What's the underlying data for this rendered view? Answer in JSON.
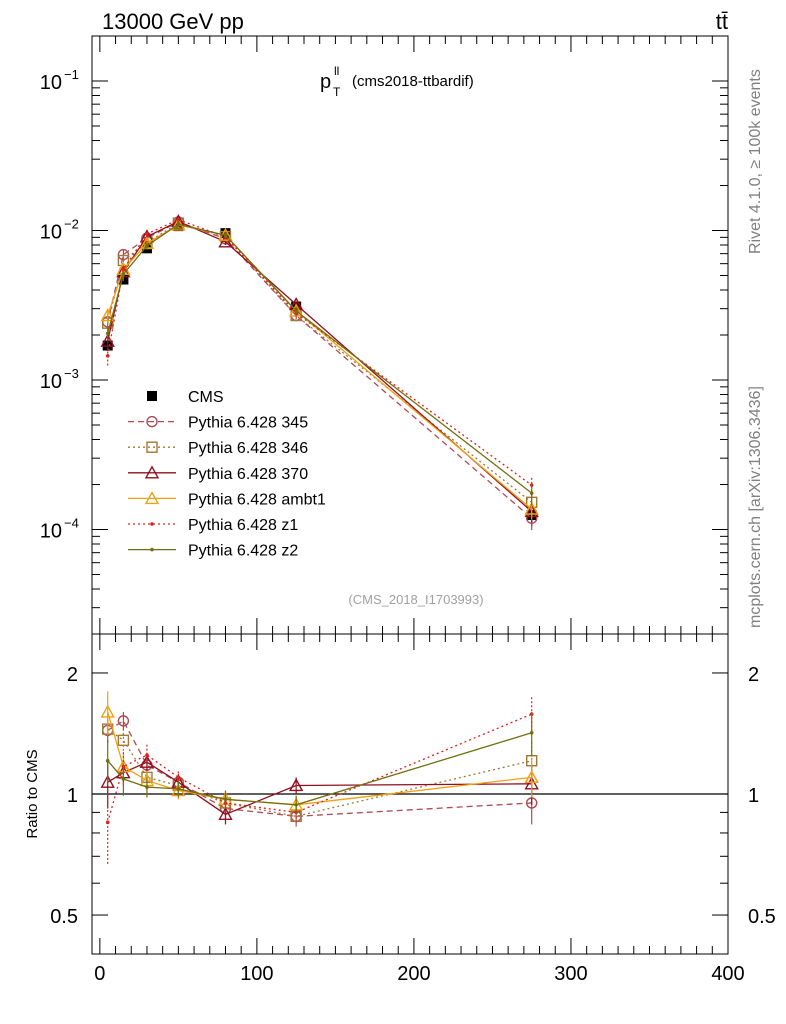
{
  "header": {
    "energy_label": "13000 GeV pp",
    "process_label": "tt̄",
    "side_label_top": "Rivet 4.1.0, ≥ 100k events",
    "side_label_bottom": "mcplots.cern.ch [arXiv:1306.3436]",
    "plot_title": "(cms2018-ttbardif)",
    "plot_var": "p",
    "plot_var_sup": "ll",
    "plot_var_sub": "T",
    "analysis_id": "(CMS_2018_I1703993)"
  },
  "chart_data": [
    {
      "type": "line",
      "panel": "main",
      "yscale": "log",
      "xlim": [
        -5,
        400
      ],
      "ylim": [
        2e-05,
        0.2
      ],
      "ylabel": "",
      "xlabel": "",
      "ytick_labels": [
        {
          "value": 0.1,
          "base": "10",
          "exp": "−1"
        },
        {
          "value": 0.01,
          "base": "10",
          "exp": "−2"
        },
        {
          "value": 0.001,
          "base": "10",
          "exp": "−3"
        },
        {
          "value": 0.0001,
          "base": "10",
          "exp": "−4"
        }
      ],
      "x": [
        5,
        15,
        30,
        50,
        80,
        125,
        275
      ],
      "series": [
        {
          "name": "CMS",
          "color": "#000000",
          "marker": "filled-square",
          "line": "none",
          "values": [
            0.0017,
            0.0047,
            0.0076,
            0.0107,
            0.0096,
            0.0031,
            0.000125
          ],
          "errors": [
            0.00013,
            0.0003,
            0.0004,
            0.0005,
            0.0005,
            0.0002,
            2e-05
          ]
        },
        {
          "name": "Pythia 6.428 345",
          "color": "#b04a55",
          "marker": "open-circle",
          "line": "dashed",
          "values": [
            0.00245,
            0.0069,
            0.0089,
            0.0114,
            0.0088,
            0.0027,
            0.000119
          ],
          "errors": [
            0.0002,
            0.0005,
            0.0005,
            0.0005,
            0.0004,
            0.00015,
            2e-05
          ]
        },
        {
          "name": "Pythia 6.428 346",
          "color": "#a07838",
          "marker": "open-square",
          "line": "dotted",
          "values": [
            0.0024,
            0.0063,
            0.0083,
            0.0112,
            0.0091,
            0.0027,
            0.000152
          ],
          "errors": [
            0.0002,
            0.0005,
            0.0005,
            0.0005,
            0.0004,
            0.00015,
            2e-05
          ]
        },
        {
          "name": "Pythia 6.428 370",
          "color": "#901020",
          "marker": "open-triangle",
          "line": "solid",
          "values": [
            0.00182,
            0.0053,
            0.0091,
            0.0115,
            0.0084,
            0.0032,
            0.000132
          ],
          "errors": [
            0.00015,
            0.0004,
            0.0005,
            0.0005,
            0.0004,
            0.00015,
            2e-05
          ]
        },
        {
          "name": "Pythia 6.428 ambt1",
          "color": "#f0a010",
          "marker": "open-triangle",
          "line": "solid",
          "values": [
            0.0027,
            0.0055,
            0.0082,
            0.0109,
            0.0093,
            0.0029,
            0.000137
          ],
          "errors": [
            0.0003,
            0.0005,
            0.0005,
            0.0005,
            0.0004,
            0.00015,
            2e-05
          ]
        },
        {
          "name": "Pythia 6.428 z1",
          "color": "#e02020",
          "marker": "dot",
          "line": "dotted",
          "values": [
            0.00145,
            0.0055,
            0.0095,
            0.0118,
            0.0091,
            0.0028,
            0.000198
          ],
          "errors": [
            0.0002,
            0.0005,
            0.0005,
            0.0005,
            0.0004,
            0.00015,
            3e-05
          ]
        },
        {
          "name": "Pythia 6.428 z2",
          "color": "#707010",
          "marker": "dot",
          "line": "solid",
          "values": [
            0.00205,
            0.0051,
            0.0079,
            0.011,
            0.0093,
            0.0029,
            0.000175
          ],
          "errors": [
            0.0002,
            0.0005,
            0.0005,
            0.0005,
            0.0004,
            0.00015,
            3e-05
          ]
        }
      ]
    },
    {
      "type": "line",
      "panel": "ratio",
      "yscale": "log",
      "xlim": [
        -5,
        400
      ],
      "ylim": [
        0.4,
        2.5
      ],
      "ylabel": "Ratio to CMS",
      "xlabel": "",
      "xtick_labels": [
        "0",
        "100",
        "200",
        "300",
        "400"
      ],
      "xticks": [
        0,
        100,
        200,
        300,
        400
      ],
      "ytick_labels": [
        "0.5",
        "1",
        "2"
      ],
      "yticks": [
        0.5,
        1,
        2
      ],
      "x": [
        5,
        15,
        30,
        50,
        80,
        125,
        275
      ],
      "series": [
        {
          "name": "Pythia 6.428 345",
          "color": "#b04a55",
          "marker": "open-circle",
          "line": "dashed",
          "values": [
            1.44,
            1.52,
            1.18,
            1.07,
            0.92,
            0.88,
            0.95
          ],
          "errors": [
            0.1,
            0.08,
            0.06,
            0.05,
            0.05,
            0.05,
            0.11
          ]
        },
        {
          "name": "Pythia 6.428 346",
          "color": "#a07838",
          "marker": "open-square",
          "line": "dotted",
          "values": [
            1.45,
            1.36,
            1.1,
            1.05,
            0.95,
            0.88,
            1.21
          ],
          "errors": [
            0.1,
            0.08,
            0.06,
            0.05,
            0.05,
            0.05,
            0.15
          ]
        },
        {
          "name": "Pythia 6.428 370",
          "color": "#901020",
          "marker": "open-triangle",
          "line": "solid",
          "values": [
            1.07,
            1.13,
            1.2,
            1.07,
            0.89,
            1.05,
            1.06
          ],
          "errors": [
            0.15,
            0.08,
            0.06,
            0.05,
            0.05,
            0.05,
            0.12
          ]
        },
        {
          "name": "Pythia 6.428 ambt1",
          "color": "#f0a010",
          "marker": "open-triangle",
          "line": "solid",
          "values": [
            1.6,
            1.17,
            1.08,
            1.02,
            0.97,
            0.94,
            1.1
          ],
          "errors": [
            0.2,
            0.1,
            0.06,
            0.05,
            0.05,
            0.05,
            0.12
          ]
        },
        {
          "name": "Pythia 6.428 z1",
          "color": "#e02020",
          "marker": "dot",
          "line": "dotted",
          "values": [
            0.85,
            1.17,
            1.25,
            1.1,
            0.95,
            0.9,
            1.58
          ],
          "errors": [
            0.18,
            0.1,
            0.08,
            0.05,
            0.05,
            0.05,
            0.18
          ]
        },
        {
          "name": "Pythia 6.428 z2",
          "color": "#707010",
          "marker": "dot",
          "line": "solid",
          "values": [
            1.21,
            1.09,
            1.04,
            1.03,
            0.97,
            0.94,
            1.42
          ],
          "errors": [
            0.15,
            0.1,
            0.06,
            0.05,
            0.05,
            0.05,
            0.18
          ]
        }
      ]
    }
  ]
}
